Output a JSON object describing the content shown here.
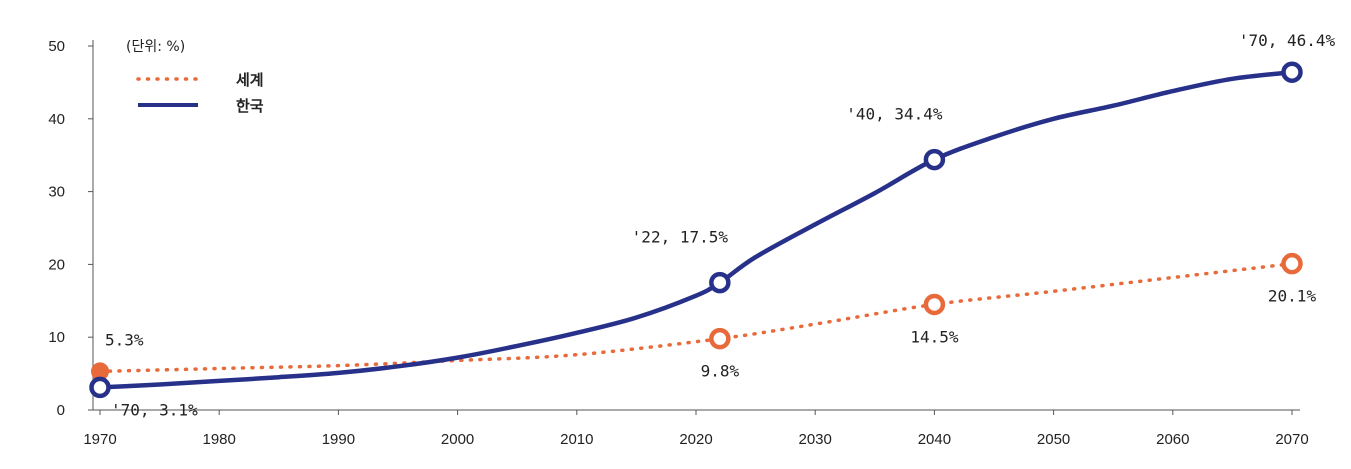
{
  "chart_data": {
    "type": "line",
    "unit_label": "(단위: %)",
    "x_ticks": [
      "1970",
      "1980",
      "1990",
      "2000",
      "2010",
      "2020",
      "2030",
      "2040",
      "2050",
      "2060",
      "2070"
    ],
    "y_ticks": [
      "0",
      "10",
      "20",
      "30",
      "40",
      "50"
    ],
    "xlim": [
      1970,
      2070
    ],
    "ylim": [
      0,
      50
    ],
    "grid": false,
    "legend_position": "top-left",
    "series": [
      {
        "name": "세계",
        "color": "#E8693A",
        "style": "dotted",
        "points": [
          [
            1970,
            5.3
          ],
          [
            1980,
            5.7
          ],
          [
            1990,
            6.1
          ],
          [
            2000,
            6.8
          ],
          [
            2010,
            7.6
          ],
          [
            2022,
            9.8
          ],
          [
            2030,
            11.8
          ],
          [
            2040,
            14.5
          ],
          [
            2050,
            16.3
          ],
          [
            2060,
            18.2
          ],
          [
            2070,
            20.1
          ]
        ],
        "markers": [
          {
            "x": 2022,
            "y": 9.8,
            "label": "9.8%"
          },
          {
            "x": 2040,
            "y": 14.5,
            "label": "14.5%"
          },
          {
            "x": 2070,
            "y": 20.1,
            "label": "20.1%"
          }
        ],
        "extra_labels": [
          {
            "x": 1970,
            "y": 5.3,
            "label": "5.3%"
          }
        ]
      },
      {
        "name": "한국",
        "color": "#28318A",
        "style": "solid",
        "points": [
          [
            1970,
            3.1
          ],
          [
            1975,
            3.5
          ],
          [
            1980,
            4.0
          ],
          [
            1985,
            4.5
          ],
          [
            1990,
            5.1
          ],
          [
            1995,
            6.0
          ],
          [
            2000,
            7.2
          ],
          [
            2005,
            8.8
          ],
          [
            2010,
            10.6
          ],
          [
            2015,
            12.7
          ],
          [
            2020,
            15.7
          ],
          [
            2022,
            17.5
          ],
          [
            2025,
            21.0
          ],
          [
            2030,
            25.5
          ],
          [
            2035,
            29.8
          ],
          [
            2040,
            34.4
          ],
          [
            2045,
            37.5
          ],
          [
            2050,
            40.0
          ],
          [
            2055,
            41.8
          ],
          [
            2060,
            43.8
          ],
          [
            2065,
            45.5
          ],
          [
            2070,
            46.4
          ]
        ],
        "markers": [
          {
            "x": 1970,
            "y": 3.1,
            "label": "'70, 3.1%"
          },
          {
            "x": 2022,
            "y": 17.5,
            "label": "'22, 17.5%"
          },
          {
            "x": 2040,
            "y": 34.4,
            "label": "'40, 34.4%"
          },
          {
            "x": 2070,
            "y": 46.4,
            "label": "'70, 46.4%"
          }
        ]
      }
    ]
  }
}
